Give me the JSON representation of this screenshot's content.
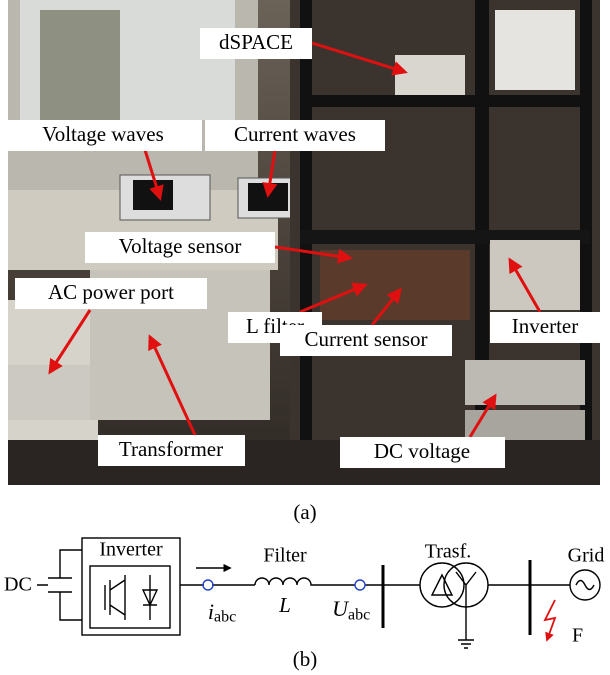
{
  "photo": {
    "labels": [
      "dSPACE",
      "Voltage waves",
      "Current waves",
      "Voltage sensor",
      "AC power port",
      "L filter",
      "Inverter",
      "Current sensor",
      "Transformer",
      "DC voltage"
    ]
  },
  "caption_a": "(a)",
  "diagram": {
    "dc": "DC",
    "inverter": "Inverter",
    "current": {
      "symbol": "i",
      "subscript": "abc"
    },
    "filter": "Filter",
    "inductor": "L",
    "voltage": {
      "symbol": "U",
      "subscript": "abc"
    },
    "transformer": "Trasf.",
    "grid": "Grid",
    "fault": "F"
  },
  "caption_b": "(b)"
}
